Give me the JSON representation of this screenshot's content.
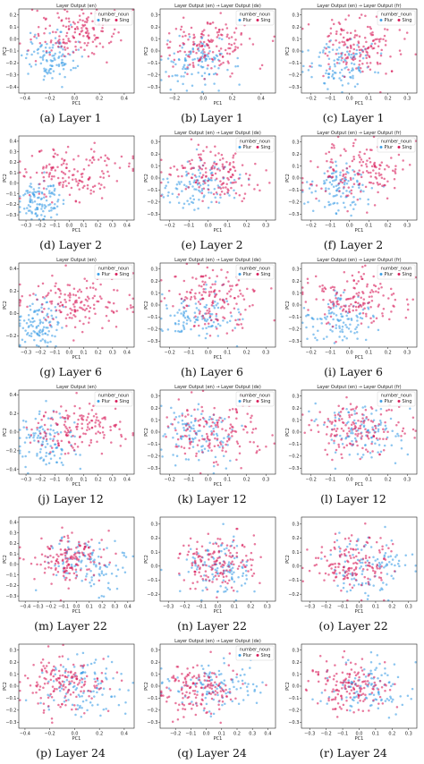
{
  "colors": {
    "plur": "#3d9fe6",
    "sing": "#d81e5b"
  },
  "chart_data": [
    {
      "type": "scatter",
      "caption": "(a) Layer 1",
      "title": "Layer Output (en)",
      "xlabel": "PC1",
      "ylabel": "PC2",
      "xticks": [
        "−0.4",
        "−0.2",
        "0.0",
        "0.2",
        "0.4"
      ],
      "xlim": [
        -0.45,
        0.48
      ],
      "yticks": [
        "−0.4",
        "−0.3",
        "−0.2",
        "−0.1",
        "0.0",
        "0.1",
        "0.2"
      ],
      "ylim": [
        -0.45,
        0.25
      ],
      "legend": {
        "title": "number_noun",
        "entries": [
          "Plur",
          "Sing"
        ],
        "position": "top-right"
      },
      "series": [
        {
          "name": "Plur",
          "center": [
            -0.2,
            -0.15
          ],
          "spread": [
            0.1,
            0.1
          ],
          "n": 110
        },
        {
          "name": "Sing",
          "center": [
            0.0,
            0.05
          ],
          "spread": [
            0.18,
            0.1
          ],
          "n": 150
        }
      ]
    },
    {
      "type": "scatter",
      "caption": "(b) Layer 1",
      "title": "Layer Output (en) → Layer Output (de)",
      "xlabel": "PC1",
      "ylabel": "PC2",
      "xticks": [
        "−0.2",
        "0.0",
        "0.2",
        "0.4"
      ],
      "xlim": [
        -0.3,
        0.5
      ],
      "yticks": [
        "−0.3",
        "−0.2",
        "−0.1",
        "0.0",
        "0.1",
        "0.2",
        "0.3"
      ],
      "ylim": [
        -0.35,
        0.35
      ],
      "legend": {
        "title": "number_noun",
        "entries": [
          "Plur",
          "Sing"
        ],
        "position": "top-right"
      },
      "series": [
        {
          "name": "Plur",
          "center": [
            -0.05,
            -0.1
          ],
          "spread": [
            0.12,
            0.1
          ],
          "n": 110
        },
        {
          "name": "Sing",
          "center": [
            0.05,
            0.05
          ],
          "spread": [
            0.15,
            0.12
          ],
          "n": 150
        }
      ]
    },
    {
      "type": "scatter",
      "caption": "(c) Layer 1",
      "title": "Layer Output (en) → Layer Output (fr)",
      "xlabel": "PC1",
      "ylabel": "PC2",
      "xticks": [
        "−0.2",
        "−0.1",
        "0.0",
        "0.1",
        "0.2",
        "0.3"
      ],
      "xlim": [
        -0.25,
        0.35
      ],
      "yticks": [
        "−0.3",
        "−0.2",
        "−0.1",
        "0.0",
        "0.1",
        "0.2",
        "0.3"
      ],
      "ylim": [
        -0.35,
        0.35
      ],
      "legend": {
        "title": "number_noun",
        "entries": [
          "Plur",
          "Sing"
        ],
        "position": "top-right"
      },
      "series": [
        {
          "name": "Plur",
          "center": [
            -0.05,
            -0.1
          ],
          "spread": [
            0.08,
            0.1
          ],
          "n": 110
        },
        {
          "name": "Sing",
          "center": [
            0.05,
            0.05
          ],
          "spread": [
            0.12,
            0.12
          ],
          "n": 150
        }
      ]
    },
    {
      "type": "scatter",
      "caption": "(d) Layer 2",
      "title": "",
      "xlabel": "PC1",
      "ylabel": "PC2",
      "xticks": [
        "−0.3",
        "−0.2",
        "−0.1",
        "0.0",
        "0.1",
        "0.2",
        "0.3",
        "0.4"
      ],
      "xlim": [
        -0.35,
        0.45
      ],
      "yticks": [
        "−0.3",
        "−0.2",
        "−0.1",
        "0.0",
        "0.1",
        "0.2",
        "0.3",
        "0.4"
      ],
      "ylim": [
        -0.35,
        0.45
      ],
      "legend": null,
      "series": [
        {
          "name": "Plur",
          "center": [
            -0.2,
            -0.15
          ],
          "spread": [
            0.08,
            0.1
          ],
          "n": 110
        },
        {
          "name": "Sing",
          "center": [
            0.05,
            0.1
          ],
          "spread": [
            0.18,
            0.13
          ],
          "n": 150
        }
      ]
    },
    {
      "type": "scatter",
      "caption": "(e) Layer 2",
      "title": "Layer Output (en) → Layer Output (de)",
      "xlabel": "PC1",
      "ylabel": "PC2",
      "xticks": [
        "−0.2",
        "−0.1",
        "0.0",
        "0.1",
        "0.2",
        "0.3"
      ],
      "xlim": [
        -0.25,
        0.35
      ],
      "yticks": [
        "−0.3",
        "−0.2",
        "−0.1",
        "0.0",
        "0.1",
        "0.2",
        "0.3"
      ],
      "ylim": [
        -0.35,
        0.35
      ],
      "legend": {
        "title": "number_noun",
        "entries": [
          "Plur",
          "Sing"
        ],
        "position": "top-right"
      },
      "series": [
        {
          "name": "Plur",
          "center": [
            -0.05,
            -0.05
          ],
          "spread": [
            0.1,
            0.1
          ],
          "n": 110
        },
        {
          "name": "Sing",
          "center": [
            0.03,
            0.02
          ],
          "spread": [
            0.12,
            0.12
          ],
          "n": 150
        }
      ]
    },
    {
      "type": "scatter",
      "caption": "(f) Layer 2",
      "title": "Layer Output (en) → Layer Output (fr)",
      "xlabel": "PC1",
      "ylabel": "PC2",
      "xticks": [
        "−0.2",
        "−0.1",
        "0.0",
        "0.1",
        "0.2",
        "0.3"
      ],
      "xlim": [
        -0.25,
        0.35
      ],
      "yticks": [
        "−0.3",
        "−0.2",
        "−0.1",
        "0.0",
        "0.1",
        "0.2",
        "0.3"
      ],
      "ylim": [
        -0.35,
        0.35
      ],
      "legend": {
        "title": "number_noun",
        "entries": [
          "Plur",
          "Sing"
        ],
        "position": "top-right"
      },
      "series": [
        {
          "name": "Plur",
          "center": [
            -0.05,
            -0.08
          ],
          "spread": [
            0.08,
            0.1
          ],
          "n": 110
        },
        {
          "name": "Sing",
          "center": [
            0.05,
            0.05
          ],
          "spread": [
            0.12,
            0.12
          ],
          "n": 150
        }
      ]
    },
    {
      "type": "scatter",
      "caption": "(g) Layer 6",
      "title": "Layer Output (en)",
      "xlabel": "PC1",
      "ylabel": "PC2",
      "xticks": [
        "−0.3",
        "−0.2",
        "−0.1",
        "0.0",
        "0.1",
        "0.2",
        "0.3",
        "0.4"
      ],
      "xlim": [
        -0.35,
        0.45
      ],
      "yticks": [
        "−0.2",
        "0.0",
        "0.2",
        "0.4"
      ],
      "ylim": [
        -0.3,
        0.45
      ],
      "legend": {
        "title": "number_noun",
        "entries": [
          "Plur",
          "Sing"
        ],
        "position": "top-right"
      },
      "series": [
        {
          "name": "Plur",
          "center": [
            -0.2,
            -0.1
          ],
          "spread": [
            0.08,
            0.1
          ],
          "n": 110
        },
        {
          "name": "Sing",
          "center": [
            0.05,
            0.1
          ],
          "spread": [
            0.18,
            0.12
          ],
          "n": 150
        }
      ]
    },
    {
      "type": "scatter",
      "caption": "(h) Layer 6",
      "title": "Layer Output (en) → Layer Output (de)",
      "xlabel": "PC1",
      "ylabel": "PC2",
      "xticks": [
        "−0.2",
        "−0.1",
        "0.0",
        "0.1",
        "0.2",
        "0.3"
      ],
      "xlim": [
        -0.25,
        0.35
      ],
      "yticks": [
        "−0.3",
        "−0.2",
        "−0.1",
        "0.0",
        "0.1",
        "0.2",
        "0.3"
      ],
      "ylim": [
        -0.35,
        0.35
      ],
      "legend": {
        "title": "number_noun",
        "entries": [
          "Plur",
          "Sing"
        ],
        "position": "top-right"
      },
      "series": [
        {
          "name": "Plur",
          "center": [
            -0.05,
            -0.1
          ],
          "spread": [
            0.1,
            0.1
          ],
          "n": 110
        },
        {
          "name": "Sing",
          "center": [
            0.03,
            0.05
          ],
          "spread": [
            0.12,
            0.12
          ],
          "n": 150
        }
      ]
    },
    {
      "type": "scatter",
      "caption": "(i) Layer 6",
      "title": "Layer Output (en) → Layer Output (fr)",
      "xlabel": "PC1",
      "ylabel": "PC2",
      "xticks": [
        "−0.2",
        "−0.1",
        "0.0",
        "0.1",
        "0.2",
        "0.3"
      ],
      "xlim": [
        -0.25,
        0.35
      ],
      "yticks": [
        "−0.3",
        "−0.2",
        "−0.1",
        "0.0",
        "0.1",
        "0.2",
        "0.3"
      ],
      "ylim": [
        -0.35,
        0.35
      ],
      "legend": {
        "title": "number_noun",
        "entries": [
          "Plur",
          "Sing"
        ],
        "position": "top-right"
      },
      "series": [
        {
          "name": "Plur",
          "center": [
            -0.05,
            -0.12
          ],
          "spread": [
            0.08,
            0.1
          ],
          "n": 110
        },
        {
          "name": "Sing",
          "center": [
            0.05,
            0.05
          ],
          "spread": [
            0.12,
            0.12
          ],
          "n": 150
        }
      ]
    },
    {
      "type": "scatter",
      "caption": "(j) Layer 12",
      "title": "Layer Output (en)",
      "xlabel": "PC1",
      "ylabel": "PC2",
      "xticks": [
        "−0.3",
        "−0.2",
        "−0.1",
        "0.0",
        "0.1",
        "0.2",
        "0.3",
        "0.4"
      ],
      "xlim": [
        -0.35,
        0.45
      ],
      "yticks": [
        "−0.4",
        "−0.2",
        "0.0",
        "0.2",
        "0.4"
      ],
      "ylim": [
        -0.45,
        0.45
      ],
      "legend": {
        "title": "number_noun",
        "entries": [
          "Plur",
          "Sing"
        ],
        "position": "top-right"
      },
      "series": [
        {
          "name": "Plur",
          "center": [
            -0.15,
            -0.1
          ],
          "spread": [
            0.1,
            0.15
          ],
          "n": 110
        },
        {
          "name": "Sing",
          "center": [
            0.05,
            0.05
          ],
          "spread": [
            0.18,
            0.12
          ],
          "n": 150
        }
      ]
    },
    {
      "type": "scatter",
      "caption": "(k) Layer 12",
      "title": "Layer Output (en) → Layer Output (de)",
      "xlabel": "PC1",
      "ylabel": "PC2",
      "xticks": [
        "−0.2",
        "−0.1",
        "0.0",
        "0.1",
        "0.2",
        "0.3"
      ],
      "xlim": [
        -0.25,
        0.35
      ],
      "yticks": [
        "−0.3",
        "−0.2",
        "−0.1",
        "0.0",
        "0.1",
        "0.2",
        "0.3"
      ],
      "ylim": [
        -0.35,
        0.35
      ],
      "legend": {
        "title": "number_noun",
        "entries": [
          "Plur",
          "Sing"
        ],
        "position": "top-right"
      },
      "series": [
        {
          "name": "Plur",
          "center": [
            -0.05,
            0.0
          ],
          "spread": [
            0.1,
            0.12
          ],
          "n": 110
        },
        {
          "name": "Sing",
          "center": [
            0.03,
            0.0
          ],
          "spread": [
            0.12,
            0.12
          ],
          "n": 150
        }
      ]
    },
    {
      "type": "scatter",
      "caption": "(l) Layer 12",
      "title": "Layer Output (en) → Layer Output (fr)",
      "xlabel": "PC1",
      "ylabel": "PC2",
      "xticks": [
        "−0.2",
        "−0.1",
        "0.0",
        "0.1",
        "0.2",
        "0.3"
      ],
      "xlim": [
        -0.25,
        0.35
      ],
      "yticks": [
        "−0.3",
        "−0.2",
        "−0.1",
        "0.0",
        "0.1",
        "0.2",
        "0.3"
      ],
      "ylim": [
        -0.35,
        0.35
      ],
      "legend": {
        "title": "number_noun",
        "entries": [
          "Plur",
          "Sing"
        ],
        "position": "top-right"
      },
      "series": [
        {
          "name": "Plur",
          "center": [
            0.05,
            0.0
          ],
          "spread": [
            0.12,
            0.12
          ],
          "n": 110
        },
        {
          "name": "Sing",
          "center": [
            0.03,
            0.02
          ],
          "spread": [
            0.12,
            0.12
          ],
          "n": 150
        }
      ]
    },
    {
      "type": "scatter",
      "caption": "(m) Layer 22",
      "title": "",
      "xlabel": "PC1",
      "ylabel": "PC2",
      "xticks": [
        "−0.4",
        "−0.3",
        "−0.2",
        "−0.1",
        "0.0",
        "0.1",
        "0.2",
        "0.3",
        "0.4"
      ],
      "xlim": [
        -0.45,
        0.45
      ],
      "yticks": [
        "−0.3",
        "−0.2",
        "−0.1",
        "0.0",
        "0.1",
        "0.2",
        "0.3",
        "0.4"
      ],
      "ylim": [
        -0.35,
        0.45
      ],
      "legend": null,
      "series": [
        {
          "name": "Plur",
          "center": [
            0.1,
            0.0
          ],
          "spread": [
            0.15,
            0.12
          ],
          "n": 110
        },
        {
          "name": "Sing",
          "center": [
            -0.05,
            0.05
          ],
          "spread": [
            0.15,
            0.12
          ],
          "n": 150
        }
      ]
    },
    {
      "type": "scatter",
      "caption": "(n) Layer 22",
      "title": "",
      "xlabel": "PC1",
      "ylabel": "PC2",
      "xticks": [
        "−0.3",
        "−0.2",
        "−0.1",
        "0.0",
        "0.1",
        "0.2",
        "0.3"
      ],
      "xlim": [
        -0.35,
        0.35
      ],
      "yticks": [
        "−0.2",
        "−0.1",
        "0.0",
        "0.1",
        "0.2",
        "0.3"
      ],
      "ylim": [
        -0.25,
        0.35
      ],
      "legend": null,
      "series": [
        {
          "name": "Plur",
          "center": [
            0.0,
            0.0
          ],
          "spread": [
            0.12,
            0.1
          ],
          "n": 110
        },
        {
          "name": "Sing",
          "center": [
            0.0,
            0.02
          ],
          "spread": [
            0.12,
            0.1
          ],
          "n": 150
        }
      ]
    },
    {
      "type": "scatter",
      "caption": "(o) Layer 22",
      "title": "",
      "xlabel": "PC1",
      "ylabel": "PC2",
      "xticks": [
        "−0.3",
        "−0.2",
        "−0.1",
        "0.0",
        "0.1",
        "0.2",
        "0.3"
      ],
      "xlim": [
        -0.35,
        0.35
      ],
      "yticks": [
        "−0.2",
        "−0.1",
        "0.0",
        "0.1",
        "0.2",
        "0.3"
      ],
      "ylim": [
        -0.25,
        0.35
      ],
      "legend": null,
      "series": [
        {
          "name": "Plur",
          "center": [
            0.05,
            0.0
          ],
          "spread": [
            0.12,
            0.1
          ],
          "n": 110
        },
        {
          "name": "Sing",
          "center": [
            -0.03,
            0.02
          ],
          "spread": [
            0.12,
            0.1
          ],
          "n": 150
        }
      ]
    },
    {
      "type": "scatter",
      "caption": "(p) Layer 24",
      "title": "",
      "xlabel": "PC1",
      "ylabel": "PC2",
      "xticks": [
        "−0.4",
        "−0.2",
        "0.0",
        "0.2",
        "0.4"
      ],
      "xlim": [
        -0.45,
        0.48
      ],
      "yticks": [
        "−0.3",
        "−0.2",
        "−0.1",
        "0.0",
        "0.1",
        "0.2",
        "0.3"
      ],
      "ylim": [
        -0.35,
        0.35
      ],
      "legend": null,
      "series": [
        {
          "name": "Plur",
          "center": [
            0.05,
            0.0
          ],
          "spread": [
            0.18,
            0.12
          ],
          "n": 110
        },
        {
          "name": "Sing",
          "center": [
            -0.05,
            0.02
          ],
          "spread": [
            0.18,
            0.12
          ],
          "n": 150
        }
      ]
    },
    {
      "type": "scatter",
      "caption": "(q) Layer 24",
      "title": "Layer Output (en) → Layer Output (de)",
      "xlabel": "PC1",
      "ylabel": "PC2",
      "xticks": [
        "−0.2",
        "−0.1",
        "0.0",
        "0.1",
        "0.2",
        "0.3",
        "0.4"
      ],
      "xlim": [
        -0.3,
        0.45
      ],
      "yticks": [
        "−0.3",
        "−0.2",
        "−0.1",
        "0.0",
        "0.1",
        "0.2",
        "0.3"
      ],
      "ylim": [
        -0.35,
        0.35
      ],
      "legend": {
        "title": "number_noun",
        "entries": [
          "Plur",
          "Sing"
        ],
        "position": "top-right"
      },
      "series": [
        {
          "name": "Plur",
          "center": [
            0.05,
            0.0
          ],
          "spread": [
            0.15,
            0.1
          ],
          "n": 110
        },
        {
          "name": "Sing",
          "center": [
            -0.05,
            -0.02
          ],
          "spread": [
            0.12,
            0.1
          ],
          "n": 150
        }
      ]
    },
    {
      "type": "scatter",
      "caption": "(r) Layer 24",
      "title": "",
      "xlabel": "PC1",
      "ylabel": "PC2",
      "xticks": [
        "−0.3",
        "−0.2",
        "−0.1",
        "0.0",
        "0.1",
        "0.2",
        "0.3"
      ],
      "xlim": [
        -0.35,
        0.35
      ],
      "yticks": [
        "−0.3",
        "−0.2",
        "−0.1",
        "0.0",
        "0.1",
        "0.2",
        "0.3"
      ],
      "ylim": [
        -0.35,
        0.35
      ],
      "legend": null,
      "series": [
        {
          "name": "Plur",
          "center": [
            0.05,
            0.0
          ],
          "spread": [
            0.12,
            0.1
          ],
          "n": 110
        },
        {
          "name": "Sing",
          "center": [
            -0.03,
            0.0
          ],
          "spread": [
            0.12,
            0.1
          ],
          "n": 150
        }
      ]
    }
  ]
}
